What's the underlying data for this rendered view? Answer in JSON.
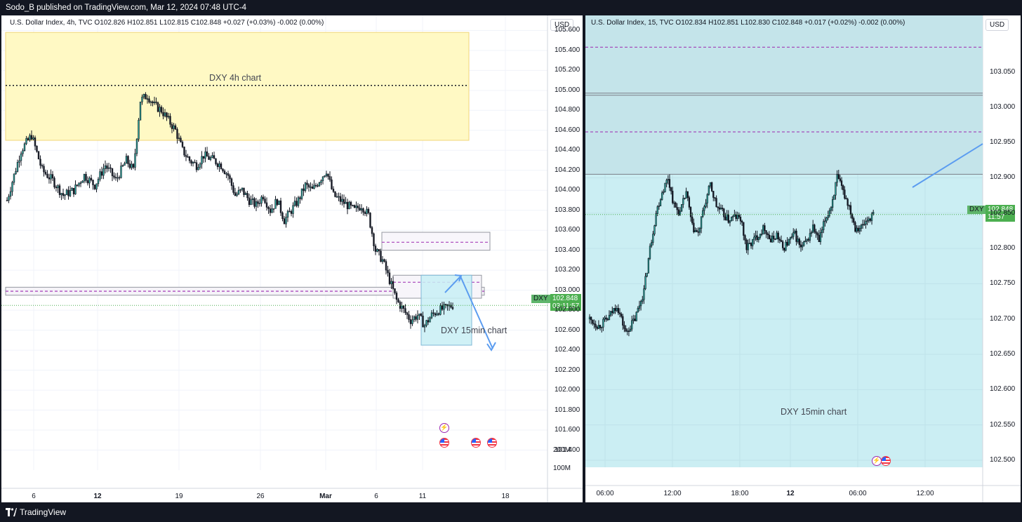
{
  "header": {
    "published": "Sodo_B published on TradingView.com, Mar 12, 2024 07:48 UTC-4"
  },
  "footer": {
    "brand": "TradingView"
  },
  "colors": {
    "up": "#26a69a",
    "down": "#131722",
    "zone_yellow": "#fff9c4",
    "zone_blue": "#c8eff5",
    "arrow": "#5b9cf0",
    "dash": "#9c27b0",
    "price_green": "#4caf50"
  },
  "left_chart": {
    "legend": "U.S. Dollar Index, 4h, TVC  O102.826  H102.851  L102.815  C102.848  +0.027 (+0.03%)  -0.002 (0.00%)",
    "currency": "USD",
    "annotation_top": "DXY 4h chart",
    "annotation_mid": "DXY 15min chart",
    "symbol_tag": "DXY",
    "price_label": "102.848",
    "countdown": "03:11:57",
    "volume_ticks": [
      "200M",
      "100M"
    ],
    "event_icons": [
      "lightning-icon",
      "us-flag-icon"
    ]
  },
  "right_chart": {
    "legend": "U.S. Dollar Index, 15, TVC  O102.834  H102.851  L102.830  C102.848  +0.017 (+0.02%)  -0.002 (0.00%)",
    "currency": "USD",
    "annotation": "DXY 15min chart",
    "symbol_tag": "DXY",
    "price_label": "102.848",
    "countdown": "11:57"
  },
  "chart_data": [
    {
      "type": "candlestick",
      "title": "U.S. Dollar Index, 4h, TVC",
      "y_ticks": [
        "105.600",
        "105.400",
        "105.200",
        "105.000",
        "104.800",
        "104.600",
        "104.400",
        "104.200",
        "104.000",
        "103.800",
        "103.600",
        "103.400",
        "103.200",
        "103.000",
        "102.800",
        "102.600",
        "102.400",
        "102.200",
        "102.000",
        "101.800",
        "101.600",
        "101.400"
      ],
      "ylim": [
        101.2,
        105.75
      ],
      "x_ticks": [
        "6",
        "12",
        "19",
        "26",
        "Mar",
        "6",
        "11",
        "18"
      ],
      "path": [
        [
          0,
          103.9
        ],
        [
          8,
          104.4
        ],
        [
          14,
          104.55
        ],
        [
          20,
          104.2
        ],
        [
          26,
          104.1
        ],
        [
          32,
          103.95
        ],
        [
          38,
          104.0
        ],
        [
          44,
          104.15
        ],
        [
          50,
          104.05
        ],
        [
          56,
          104.25
        ],
        [
          62,
          104.1
        ],
        [
          68,
          104.3
        ],
        [
          72,
          104.2
        ],
        [
          76,
          104.9
        ],
        [
          80,
          104.95
        ],
        [
          84,
          104.85
        ],
        [
          88,
          104.8
        ],
        [
          92,
          104.7
        ],
        [
          96,
          104.6
        ],
        [
          100,
          104.4
        ],
        [
          104,
          104.3
        ],
        [
          108,
          104.25
        ],
        [
          112,
          104.35
        ],
        [
          118,
          104.3
        ],
        [
          122,
          104.25
        ],
        [
          126,
          104.15
        ],
        [
          130,
          103.95
        ],
        [
          134,
          104.0
        ],
        [
          138,
          103.9
        ],
        [
          142,
          103.85
        ],
        [
          146,
          103.95
        ],
        [
          150,
          103.8
        ],
        [
          154,
          103.9
        ],
        [
          158,
          103.7
        ],
        [
          162,
          103.8
        ],
        [
          166,
          103.9
        ],
        [
          170,
          104.05
        ],
        [
          174,
          104.0
        ],
        [
          178,
          104.1
        ],
        [
          182,
          104.2
        ],
        [
          186,
          103.95
        ],
        [
          190,
          103.9
        ],
        [
          194,
          103.85
        ],
        [
          198,
          103.8
        ],
        [
          202,
          103.85
        ],
        [
          206,
          103.75
        ],
        [
          210,
          103.4
        ],
        [
          214,
          103.3
        ],
        [
          218,
          103.1
        ],
        [
          222,
          102.9
        ],
        [
          226,
          102.8
        ],
        [
          230,
          102.7
        ],
        [
          234,
          102.75
        ],
        [
          238,
          102.65
        ],
        [
          242,
          102.75
        ],
        [
          246,
          102.8
        ],
        [
          250,
          102.82
        ],
        [
          254,
          102.85
        ]
      ],
      "zones": [
        {
          "label": "DXY 4h chart",
          "from": 104.5,
          "to": 105.58,
          "mid": 105.05,
          "color": "yellow"
        },
        {
          "from": 103.4,
          "to": 103.58,
          "mid": 103.48
        },
        {
          "from": 102.95,
          "to": 103.03,
          "mid": 102.99
        },
        {
          "from": 102.92,
          "to": 103.15,
          "mid": 103.08
        },
        {
          "label": "DXY 15min chart",
          "from": 102.45,
          "to": 103.15,
          "color": "blue"
        }
      ],
      "last_price": 102.848
    },
    {
      "type": "candlestick",
      "title": "U.S. Dollar Index, 15, TVC",
      "y_ticks": [
        "103.050",
        "103.000",
        "102.950",
        "102.900",
        "102.850",
        "102.800",
        "102.750",
        "102.700",
        "102.650",
        "102.600",
        "102.550",
        "102.500"
      ],
      "ylim": [
        102.49,
        103.13
      ],
      "x_ticks": [
        "06:00",
        "12:00",
        "18:00",
        "12",
        "06:00",
        "12:00"
      ],
      "path": [
        [
          0,
          102.7
        ],
        [
          6,
          102.69
        ],
        [
          12,
          102.7
        ],
        [
          18,
          102.72
        ],
        [
          24,
          102.68
        ],
        [
          30,
          102.7
        ],
        [
          36,
          102.74
        ],
        [
          40,
          102.8
        ],
        [
          44,
          102.85
        ],
        [
          48,
          102.88
        ],
        [
          52,
          102.9
        ],
        [
          56,
          102.86
        ],
        [
          60,
          102.85
        ],
        [
          64,
          102.88
        ],
        [
          68,
          102.83
        ],
        [
          72,
          102.82
        ],
        [
          76,
          102.86
        ],
        [
          80,
          102.89
        ],
        [
          84,
          102.86
        ],
        [
          88,
          102.85
        ],
        [
          92,
          102.84
        ],
        [
          96,
          102.845
        ],
        [
          100,
          102.842
        ],
        [
          104,
          102.8
        ],
        [
          108,
          102.81
        ],
        [
          112,
          102.82
        ],
        [
          116,
          102.83
        ],
        [
          120,
          102.81
        ],
        [
          124,
          102.82
        ],
        [
          128,
          102.8
        ],
        [
          132,
          102.81
        ],
        [
          136,
          102.82
        ],
        [
          140,
          102.8
        ],
        [
          144,
          102.81
        ],
        [
          148,
          102.83
        ],
        [
          152,
          102.81
        ],
        [
          156,
          102.84
        ],
        [
          160,
          102.86
        ],
        [
          164,
          102.9
        ],
        [
          168,
          102.88
        ],
        [
          172,
          102.86
        ],
        [
          176,
          102.83
        ],
        [
          180,
          102.83
        ],
        [
          184,
          102.84
        ],
        [
          188,
          102.848
        ]
      ],
      "levels": [
        103.085,
        103.02,
        102.965,
        102.905
      ],
      "last_price": 102.848
    }
  ]
}
